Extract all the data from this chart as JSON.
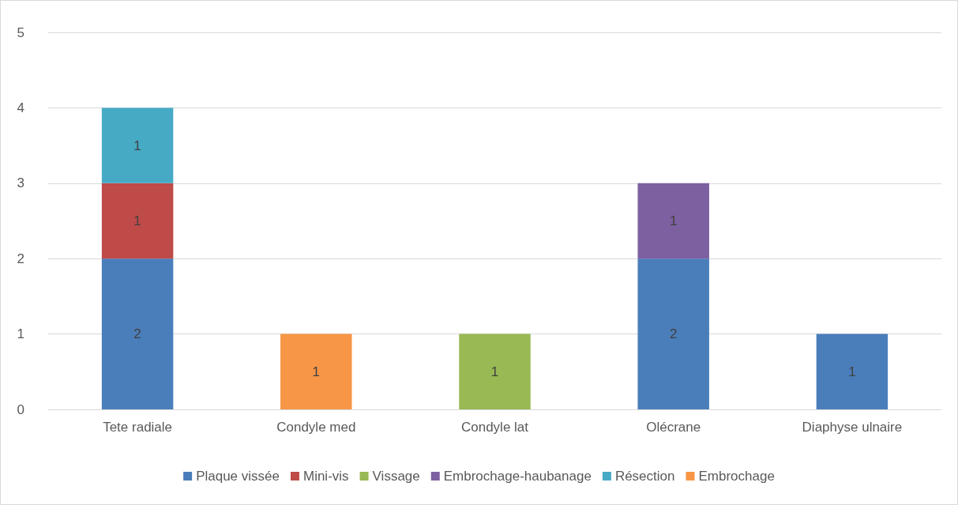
{
  "chart_data": {
    "type": "bar",
    "stacked": true,
    "categories": [
      "Tete radiale",
      "Condyle med",
      "Condyle lat",
      "Olécrane",
      "Diaphyse ulnaire"
    ],
    "series": [
      {
        "name": "Plaque vissée",
        "color": "#4a7ebb",
        "values": [
          2,
          null,
          null,
          2,
          1
        ]
      },
      {
        "name": "Mini-vis",
        "color": "#be4b48",
        "values": [
          1,
          null,
          null,
          null,
          null
        ]
      },
      {
        "name": "Vissage",
        "color": "#98b954",
        "values": [
          null,
          null,
          1,
          null,
          null
        ]
      },
      {
        "name": "Embrochage-haubanage",
        "color": "#7d60a0",
        "values": [
          null,
          null,
          null,
          1,
          null
        ]
      },
      {
        "name": "Résection",
        "color": "#46aac5",
        "values": [
          1,
          null,
          null,
          null,
          null
        ]
      },
      {
        "name": "Embrochage",
        "color": "#f79646",
        "values": [
          null,
          1,
          null,
          null,
          null
        ]
      }
    ],
    "ylim": [
      0,
      5
    ],
    "yticks": [
      0,
      1,
      2,
      3,
      4,
      5
    ],
    "grid": "y",
    "legend": "bottom",
    "data_labels": true
  }
}
